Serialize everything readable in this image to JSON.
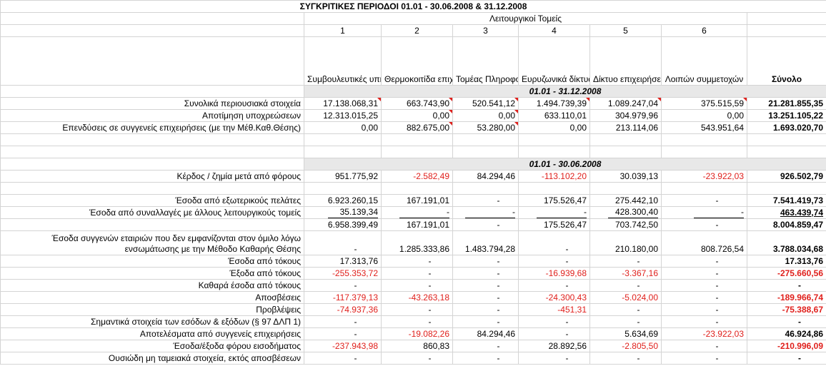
{
  "title": "ΣΥΓΚΡΙΤΙΚΕΣ ΠΕΡΙΟΔΟΙ  01.01 - 30.06.2008  & 31.12.2008",
  "segments_header": "Λειτουργικοί Τομείς",
  "col_numbers": [
    "1",
    "2",
    "3",
    "4",
    "5",
    "6"
  ],
  "col_names": [
    "Συμβουλευτικές υπηρεσίες",
    "Θερμοκοιτίδα επιχειρήσεων",
    "Τομέας Πληροφορικής",
    "Ευρυζωνικά δίκτυα επικοινωνίας",
    "Δίκτυο επιχειρήσεων συμβούλων εξωτερικού",
    "Λοιπών συμμετοχών"
  ],
  "total_header": "Σύνολο",
  "period1": "01.01 - 31.12.2008",
  "period2": "01.01  - 30.06.2008",
  "rows1": [
    {
      "label": "Συνολικά περιουσιακά στοιχεία",
      "vals": [
        "17.138.068,31",
        "663.743,90",
        "520.541,12",
        "1.494.739,39",
        "1.089.247,04",
        "375.515,59"
      ],
      "total": "21.281.855,35"
    },
    {
      "label": "Αποτίμηση υποχρεώσεων",
      "vals": [
        "12.313.015,25",
        "0,00",
        "0,00",
        "633.110,01",
        "304.979,96",
        "0,00"
      ],
      "total": "13.251.105,22"
    },
    {
      "label": "Επενδύσεις σε συγγενείς επιχειρήσεις (με την Μέθ.Καθ.Θέσης)",
      "vals": [
        "0,00",
        "882.675,00",
        "53.280,00",
        "0,00",
        "213.114,06",
        "543.951,64"
      ],
      "total": "1.693.020,70"
    }
  ],
  "profit_row": {
    "label": "Κέρδος / ζημία μετά από φόρους",
    "vals": [
      "951.775,92",
      "-2.582,49",
      "84.294,46",
      "-113.102,20",
      "30.039,13",
      "-23.922,03"
    ],
    "total": "926.502,79"
  },
  "rev_ext": {
    "label": "Έσοδα από εξωτερικούς πελάτες",
    "vals": [
      "6.923.260,15",
      "167.191,01",
      "-",
      "175.526,47",
      "275.442,10",
      "-"
    ],
    "total": "7.541.419,73"
  },
  "rev_int": {
    "label": "Έσοδα από συναλλαγές με άλλους λειτουργικούς τομείς",
    "vals": [
      "35.139,34",
      "-",
      "-",
      "-",
      "428.300,40",
      "-"
    ],
    "total": "463.439,74"
  },
  "rev_sum": {
    "vals": [
      "6.958.399,49",
      "167.191,01",
      "-",
      "175.526,47",
      "703.742,50",
      "-"
    ],
    "total": "8.004.859,47"
  },
  "assoc_rev": {
    "label_line1": "Έσοδα συγγενών εταιριών που δεν εμφανίζονται στον όμιλο λόγω",
    "label_line2": "ενσωμάτωσης με την Μέθοδο Καθαρής Θέσης",
    "vals": [
      "-",
      "1.285.333,86",
      "1.483.794,28",
      "-",
      "210.180,00",
      "808.726,54"
    ],
    "total": "3.788.034,68"
  },
  "rows2": [
    {
      "label": "Έσοδα από τόκους",
      "vals": [
        "17.313,76",
        "-",
        "-",
        "-",
        "-",
        "-"
      ],
      "total": "17.313,76"
    },
    {
      "label": "Έξοδα από τόκους",
      "vals": [
        "-255.353,72",
        "-",
        "-",
        "-16.939,68",
        "-3.367,16",
        "-"
      ],
      "total": "-275.660,56"
    },
    {
      "label": "Καθαρά έσοδα από τόκους",
      "vals": [
        "-",
        "-",
        "-",
        "-",
        "-",
        "-"
      ],
      "total": "-"
    },
    {
      "label": "Αποσβέσεις",
      "vals": [
        "-117.379,13",
        "-43.263,18",
        "-",
        "-24.300,43",
        "-5.024,00",
        "-"
      ],
      "total": "-189.966,74"
    },
    {
      "label": "Προβλέψεις",
      "vals": [
        "-74.937,36",
        "-",
        "-",
        "-451,31",
        "-",
        "-"
      ],
      "total": "-75.388,67"
    },
    {
      "label": "Σημαντικά στοιχεία των εσόδων & εξόδων (§ 97 ΔΛΠ 1)",
      "vals": [
        "-",
        "-",
        "-",
        "-",
        "-",
        "-"
      ],
      "total": "-"
    },
    {
      "label": "Αποτελέσματα από συγγενείς επιχειρήσεις",
      "vals": [
        "-",
        "-19.082,26",
        "84.294,46",
        "-",
        "5.634,69",
        "-23.922,03"
      ],
      "total": "46.924,86"
    },
    {
      "label": "Έσοδα/έξοδα φόρου εισοδήματος",
      "vals": [
        "-237.943,98",
        "860,83",
        "-",
        "28.892,56",
        "-2.805,50",
        "-"
      ],
      "total": "-210.996,09"
    },
    {
      "label": "Ουσιώδη μη ταμειακά στοιχεία, εκτός αποσβέσεων",
      "vals": [
        "-",
        "-",
        "-",
        "-",
        "-",
        "-"
      ],
      "total": "-"
    }
  ],
  "colors": {
    "negative": "#e0201c",
    "grid": "#d4d4d4",
    "shade": "#e8e8e8"
  }
}
